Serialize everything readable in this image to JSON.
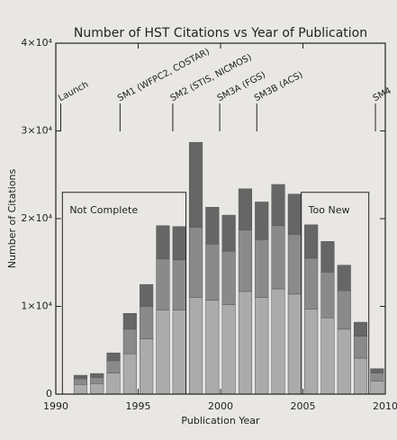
{
  "chart_data": {
    "type": "stacked-bar",
    "title": "Number of HST Citations vs Year of Publication",
    "xlabel": "Publication Year",
    "ylabel": "Number of Citations",
    "x": [
      1991,
      1992,
      1993,
      1994,
      1995,
      1996,
      1997,
      1998,
      1999,
      2000,
      2001,
      2002,
      2003,
      2004,
      2005,
      2006,
      2007,
      2008,
      2009
    ],
    "series": [
      {
        "color": "#ababab",
        "values": [
          1100,
          1200,
          2400,
          4600,
          6300,
          9600,
          9600,
          11000,
          10700,
          10200,
          11700,
          11000,
          12000,
          11400,
          9700,
          8700,
          7400,
          4100,
          1500
        ]
      },
      {
        "color": "#8a8a8a",
        "values": [
          650,
          700,
          1400,
          2800,
          3700,
          5800,
          5700,
          8000,
          6400,
          6100,
          7000,
          6600,
          7200,
          6800,
          5800,
          5200,
          4400,
          2500,
          900
        ]
      },
      {
        "color": "#666666",
        "values": [
          400,
          450,
          900,
          1800,
          2500,
          3800,
          3800,
          9700,
          4200,
          4100,
          4700,
          4300,
          4700,
          4600,
          3800,
          3500,
          2900,
          1600,
          500
        ]
      }
    ],
    "xlim": [
      1990,
      2010
    ],
    "xticks": [
      1990,
      1995,
      2000,
      2005,
      2010
    ],
    "ylim": [
      0,
      40000
    ],
    "yticks": [
      0,
      {
        "value": 10000,
        "label": "1×10⁴"
      },
      {
        "value": 20000,
        "label": "2×10⁴"
      },
      {
        "value": 30000,
        "label": "3×10⁴"
      },
      {
        "value": 40000,
        "label": "4×10⁴"
      }
    ],
    "events": [
      {
        "label": "Launch",
        "x": 1990.3
      },
      {
        "label": "SM1 (WFPC2, COSTAR)",
        "x": 1993.9
      },
      {
        "label": "SM2 (STIS, NICMOS)",
        "x": 1997.1
      },
      {
        "label": "SM3A (FGS)",
        "x": 1999.95
      },
      {
        "label": "SM3B (ACS)",
        "x": 2002.2
      },
      {
        "label": "SM4",
        "x": 2009.4
      }
    ],
    "regions": [
      {
        "label": "Not Complete",
        "x": [
          1990.4,
          1997.9
        ],
        "y": 23000
      },
      {
        "label": "Too New",
        "x": [
          2004.9,
          2009.0
        ],
        "y": 23000
      }
    ]
  }
}
